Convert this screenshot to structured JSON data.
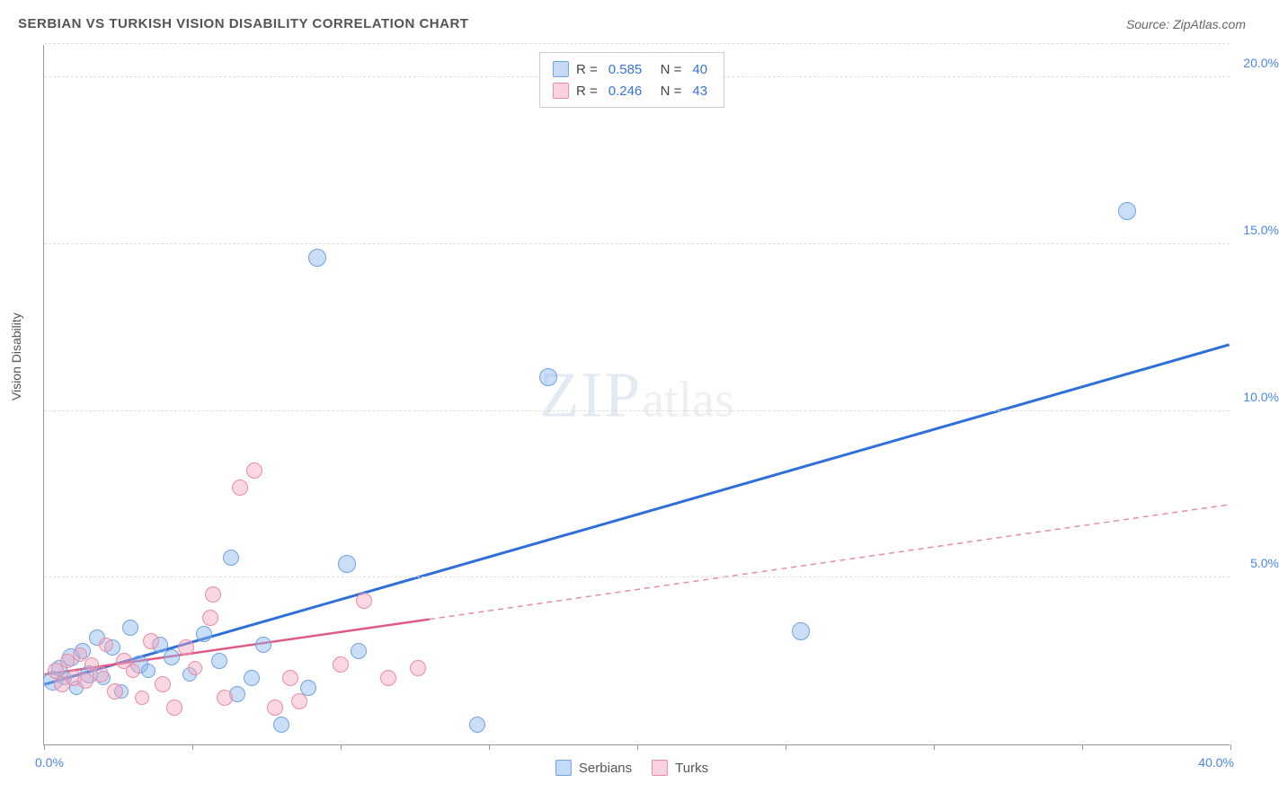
{
  "title": "SERBIAN VS TURKISH VISION DISABILITY CORRELATION CHART",
  "source_label": "Source: ZipAtlas.com",
  "y_axis_title": "Vision Disability",
  "watermark_a": "ZIP",
  "watermark_b": "atlas",
  "chart": {
    "type": "scatter",
    "background_color": "#ffffff",
    "grid_color": "#dddddd",
    "axis_color": "#999999",
    "label_color": "#4a86e8",
    "xlim": [
      0,
      40
    ],
    "ylim": [
      0,
      21
    ],
    "x_ticks": [
      0,
      5,
      10,
      15,
      20,
      25,
      30,
      35,
      40
    ],
    "x_tick_labels": {
      "left": "0.0%",
      "right": "40.0%"
    },
    "y_ticks": [
      5,
      10,
      15,
      20
    ],
    "y_tick_labels": [
      "5.0%",
      "10.0%",
      "15.0%",
      "20.0%"
    ],
    "series": [
      {
        "name": "Serbians",
        "color_fill": "rgba(137,182,238,0.45)",
        "color_stroke": "#6fa3e0",
        "trend_color": "#2e6fd9",
        "trend": {
          "x1": 0,
          "y1": 1.8,
          "x2": 40,
          "y2": 12.0,
          "dash_from_x": 40
        },
        "R": "0.585",
        "N": "40",
        "points": [
          {
            "x": 0.3,
            "y": 1.9,
            "r": 11
          },
          {
            "x": 0.5,
            "y": 2.3,
            "r": 9
          },
          {
            "x": 0.7,
            "y": 2.0,
            "r": 8
          },
          {
            "x": 0.9,
            "y": 2.6,
            "r": 10
          },
          {
            "x": 1.1,
            "y": 1.7,
            "r": 8
          },
          {
            "x": 1.3,
            "y": 2.8,
            "r": 9
          },
          {
            "x": 1.5,
            "y": 2.1,
            "r": 10
          },
          {
            "x": 1.8,
            "y": 3.2,
            "r": 9
          },
          {
            "x": 2.0,
            "y": 2.0,
            "r": 8
          },
          {
            "x": 2.3,
            "y": 2.9,
            "r": 9
          },
          {
            "x": 2.6,
            "y": 1.6,
            "r": 8
          },
          {
            "x": 2.9,
            "y": 3.5,
            "r": 9
          },
          {
            "x": 3.2,
            "y": 2.4,
            "r": 10
          },
          {
            "x": 3.5,
            "y": 2.2,
            "r": 8
          },
          {
            "x": 3.9,
            "y": 3.0,
            "r": 9
          },
          {
            "x": 4.3,
            "y": 2.6,
            "r": 9
          },
          {
            "x": 4.9,
            "y": 2.1,
            "r": 8
          },
          {
            "x": 5.4,
            "y": 3.3,
            "r": 9
          },
          {
            "x": 5.9,
            "y": 2.5,
            "r": 9
          },
          {
            "x": 6.3,
            "y": 5.6,
            "r": 9
          },
          {
            "x": 6.5,
            "y": 1.5,
            "r": 9
          },
          {
            "x": 7.0,
            "y": 2.0,
            "r": 9
          },
          {
            "x": 7.4,
            "y": 3.0,
            "r": 9
          },
          {
            "x": 8.0,
            "y": 0.6,
            "r": 9
          },
          {
            "x": 8.9,
            "y": 1.7,
            "r": 9
          },
          {
            "x": 9.2,
            "y": 14.6,
            "r": 10
          },
          {
            "x": 10.2,
            "y": 5.4,
            "r": 10
          },
          {
            "x": 10.6,
            "y": 2.8,
            "r": 9
          },
          {
            "x": 14.6,
            "y": 0.6,
            "r": 9
          },
          {
            "x": 17.0,
            "y": 11.0,
            "r": 10
          },
          {
            "x": 25.5,
            "y": 3.4,
            "r": 10
          },
          {
            "x": 36.5,
            "y": 16.0,
            "r": 10
          }
        ]
      },
      {
        "name": "Turks",
        "color_fill": "rgba(244,166,188,0.45)",
        "color_stroke": "#e88ba8",
        "trend_color": "#e05a88",
        "trend": {
          "x1": 0,
          "y1": 2.1,
          "x2": 40,
          "y2": 7.2,
          "dash_from_x": 13
        },
        "R": "0.246",
        "N": "43",
        "points": [
          {
            "x": 0.4,
            "y": 2.2,
            "r": 9
          },
          {
            "x": 0.6,
            "y": 1.8,
            "r": 9
          },
          {
            "x": 0.8,
            "y": 2.5,
            "r": 8
          },
          {
            "x": 1.0,
            "y": 2.0,
            "r": 9
          },
          {
            "x": 1.2,
            "y": 2.7,
            "r": 8
          },
          {
            "x": 1.4,
            "y": 1.9,
            "r": 9
          },
          {
            "x": 1.6,
            "y": 2.4,
            "r": 8
          },
          {
            "x": 1.9,
            "y": 2.1,
            "r": 9
          },
          {
            "x": 2.1,
            "y": 3.0,
            "r": 8
          },
          {
            "x": 2.4,
            "y": 1.6,
            "r": 9
          },
          {
            "x": 2.7,
            "y": 2.5,
            "r": 9
          },
          {
            "x": 3.0,
            "y": 2.2,
            "r": 8
          },
          {
            "x": 3.3,
            "y": 1.4,
            "r": 8
          },
          {
            "x": 3.6,
            "y": 3.1,
            "r": 9
          },
          {
            "x": 4.0,
            "y": 1.8,
            "r": 9
          },
          {
            "x": 4.4,
            "y": 1.1,
            "r": 9
          },
          {
            "x": 4.8,
            "y": 2.9,
            "r": 9
          },
          {
            "x": 5.1,
            "y": 2.3,
            "r": 8
          },
          {
            "x": 5.6,
            "y": 3.8,
            "r": 9
          },
          {
            "x": 5.7,
            "y": 4.5,
            "r": 9
          },
          {
            "x": 6.1,
            "y": 1.4,
            "r": 9
          },
          {
            "x": 6.6,
            "y": 7.7,
            "r": 9
          },
          {
            "x": 7.1,
            "y": 8.2,
            "r": 9
          },
          {
            "x": 7.8,
            "y": 1.1,
            "r": 9
          },
          {
            "x": 8.3,
            "y": 2.0,
            "r": 9
          },
          {
            "x": 8.6,
            "y": 1.3,
            "r": 9
          },
          {
            "x": 10.0,
            "y": 2.4,
            "r": 9
          },
          {
            "x": 10.8,
            "y": 4.3,
            "r": 9
          },
          {
            "x": 11.6,
            "y": 2.0,
            "r": 9
          },
          {
            "x": 12.6,
            "y": 2.3,
            "r": 9
          }
        ]
      }
    ]
  },
  "legend_bottom": [
    {
      "label": "Serbians",
      "swatch": "blue"
    },
    {
      "label": "Turks",
      "swatch": "pink"
    }
  ]
}
